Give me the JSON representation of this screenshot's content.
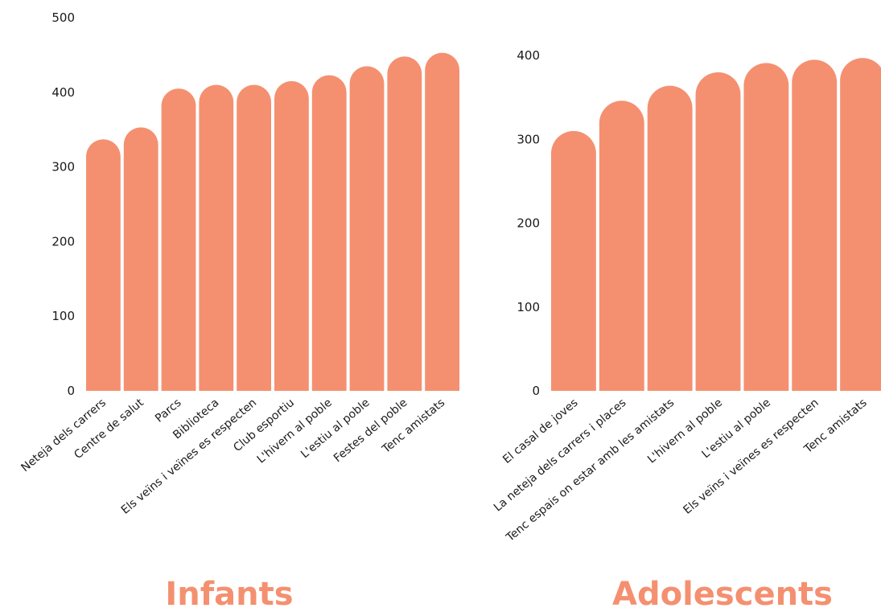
{
  "colors": {
    "bar": "#F49070",
    "text": "#1a1a1a",
    "title": "#F49070"
  },
  "chart_data": [
    {
      "type": "bar",
      "title": "Infants",
      "xlabel": "",
      "ylabel": "",
      "ylim": [
        0,
        500
      ],
      "yticks": [
        0,
        100,
        200,
        300,
        400,
        500
      ],
      "grid": false,
      "categories": [
        "Neteja dels carrers",
        "Centre de salut",
        "Parcs",
        "Biblioteca",
        "Els veïns i veïnes es respecten",
        "Club esportiu",
        "L'hivern al poble",
        "L'estiu al poble",
        "Festes del poble",
        "Tenc amistats"
      ],
      "values": [
        337,
        353,
        405,
        410,
        410,
        415,
        423,
        435,
        448,
        453
      ]
    },
    {
      "type": "bar",
      "title": "Adolescents",
      "xlabel": "",
      "ylabel": "",
      "ylim": [
        0,
        400
      ],
      "yticks": [
        0,
        100,
        200,
        300,
        400
      ],
      "grid": false,
      "categories": [
        "El casal de joves",
        "La neteja dels carrers i places",
        "Tenc espais on estar amb les amistats",
        "L'hivern al poble",
        "L'estiu al poble",
        "Els veïns i veïnes es respecten",
        "Tenc amistats"
      ],
      "values": [
        310,
        346,
        364,
        380,
        391,
        395,
        397
      ]
    }
  ]
}
